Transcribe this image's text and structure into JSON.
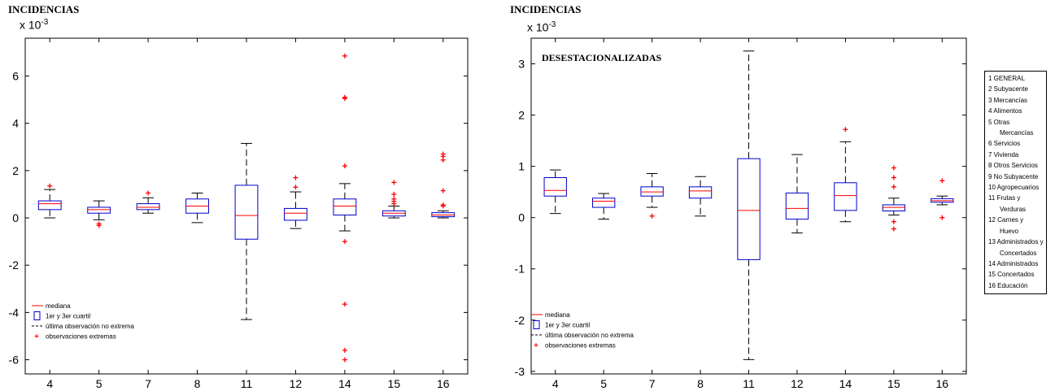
{
  "chart_data": [
    {
      "type": "boxplot",
      "title": "INCIDENCIAS",
      "scale_label": "x 10",
      "scale_exponent": "-3",
      "categories": [
        "4",
        "5",
        "7",
        "8",
        "11",
        "12",
        "14",
        "15",
        "16"
      ],
      "ylim": [
        -6.6,
        7.6
      ],
      "yticks": [
        -6,
        -4,
        -2,
        0,
        2,
        4,
        6
      ],
      "boxes": [
        {
          "whisker_low": 0.0,
          "q1": 0.35,
          "median": 0.6,
          "q3": 0.72,
          "whisker_high": 1.2,
          "outliers": [
            1.35
          ]
        },
        {
          "whisker_low": -0.08,
          "q1": 0.2,
          "median": 0.35,
          "q3": 0.45,
          "whisker_high": 0.72,
          "outliers": [
            -0.25,
            -0.32
          ]
        },
        {
          "whisker_low": 0.2,
          "q1": 0.35,
          "median": 0.45,
          "q3": 0.6,
          "whisker_high": 0.85,
          "outliers": [
            1.05
          ]
        },
        {
          "whisker_low": -0.2,
          "q1": 0.2,
          "median": 0.5,
          "q3": 0.8,
          "whisker_high": 1.05,
          "outliers": []
        },
        {
          "whisker_low": -4.3,
          "q1": -0.9,
          "median": 0.1,
          "q3": 1.38,
          "whisker_high": 3.15,
          "outliers": []
        },
        {
          "whisker_low": -0.45,
          "q1": -0.1,
          "median": 0.2,
          "q3": 0.4,
          "whisker_high": 1.1,
          "outliers": [
            1.3,
            1.7
          ]
        },
        {
          "whisker_low": -0.55,
          "q1": 0.12,
          "median": 0.5,
          "q3": 0.8,
          "whisker_high": 1.45,
          "outliers": [
            -1.0,
            -3.65,
            -5.6,
            -6.0,
            2.2,
            5.05,
            5.1,
            6.85
          ]
        },
        {
          "whisker_low": 0.0,
          "q1": 0.08,
          "median": 0.2,
          "q3": 0.3,
          "whisker_high": 0.5,
          "outliers": [
            0.6,
            0.7,
            0.8,
            1.0,
            1.5
          ]
        },
        {
          "whisker_low": 0.0,
          "q1": 0.05,
          "median": 0.12,
          "q3": 0.22,
          "whisker_high": 0.3,
          "outliers": [
            0.5,
            0.55,
            1.15,
            2.45,
            2.6,
            2.7
          ]
        }
      ],
      "legend_placement": "bottom-left",
      "legend": [
        "mediana",
        "1er y 3er cuartil",
        "última observación no extrema",
        "observaciones extremas"
      ]
    },
    {
      "type": "boxplot",
      "title": "INCIDENCIAS",
      "scale_label": "x 10",
      "scale_exponent": "-3",
      "annotation": "DESESTACIONALIZADAS",
      "categories": [
        "4",
        "5",
        "7",
        "8",
        "11",
        "12",
        "14",
        "15",
        "16"
      ],
      "ylim": [
        -3.05,
        3.5
      ],
      "yticks": [
        -3,
        -2,
        -1,
        0,
        1,
        2,
        3
      ],
      "boxes": [
        {
          "whisker_low": 0.08,
          "q1": 0.42,
          "median": 0.53,
          "q3": 0.78,
          "whisker_high": 0.93,
          "outliers": []
        },
        {
          "whisker_low": -0.03,
          "q1": 0.2,
          "median": 0.32,
          "q3": 0.38,
          "whisker_high": 0.47,
          "outliers": []
        },
        {
          "whisker_low": 0.2,
          "q1": 0.42,
          "median": 0.5,
          "q3": 0.6,
          "whisker_high": 0.86,
          "outliers": [
            0.03
          ]
        },
        {
          "whisker_low": 0.03,
          "q1": 0.38,
          "median": 0.52,
          "q3": 0.6,
          "whisker_high": 0.8,
          "outliers": []
        },
        {
          "whisker_low": -2.77,
          "q1": -0.82,
          "median": 0.14,
          "q3": 1.15,
          "whisker_high": 3.25,
          "outliers": []
        },
        {
          "whisker_low": -0.3,
          "q1": -0.03,
          "median": 0.18,
          "q3": 0.48,
          "whisker_high": 1.23,
          "outliers": []
        },
        {
          "whisker_low": -0.08,
          "q1": 0.14,
          "median": 0.43,
          "q3": 0.68,
          "whisker_high": 1.48,
          "outliers": [
            1.72
          ]
        },
        {
          "whisker_low": 0.05,
          "q1": 0.13,
          "median": 0.2,
          "q3": 0.25,
          "whisker_high": 0.38,
          "outliers": [
            -0.08,
            -0.22,
            0.6,
            0.78,
            0.97
          ]
        },
        {
          "whisker_low": 0.25,
          "q1": 0.3,
          "median": 0.33,
          "q3": 0.37,
          "whisker_high": 0.42,
          "outliers": [
            0.72,
            0.0
          ]
        }
      ],
      "legend_placement": "bottom-left",
      "legend": [
        "mediana",
        "1er y 3er cuartil",
        "última observación no extrema",
        "observaciones extremas"
      ],
      "series_legend": [
        "1 GENERAL",
        "2 Subyacente",
        "3 Mercancías",
        "4 Alimentos",
        "5 Otras",
        "Mercancías",
        "6 Servicios",
        "7 Vivienda",
        "8 Otros Servicios",
        "9 No Subyacente",
        "10 Agropecuarios",
        "11 Frutas y",
        "Verduras",
        "12 Carnes y",
        "Huevo",
        "13 Administrados y",
        "Concertados",
        "14 Administrados",
        "15 Concertados",
        "16 Educación"
      ],
      "series_legend_indented": [
        5,
        12,
        14,
        16
      ]
    }
  ],
  "colors": {
    "box": "#0000cc",
    "median": "#ff0000",
    "whisker": "#000000",
    "outlier": "#ff0000"
  }
}
